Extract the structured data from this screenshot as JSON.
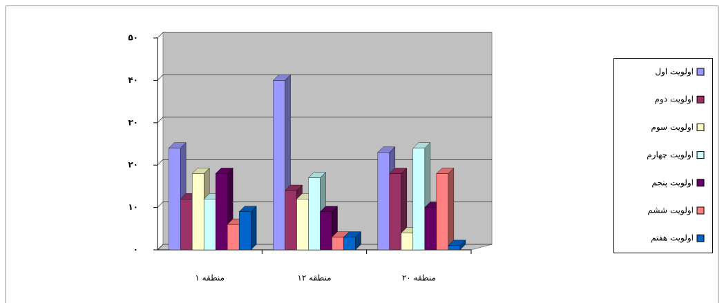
{
  "chart_data": {
    "type": "bar",
    "categories": [
      "منطقه ۱",
      "منطقه ۱۲",
      "منطقه ۲۰"
    ],
    "series": [
      {
        "name": "اولویت اول",
        "color": "#9999ff",
        "values": [
          24,
          40,
          23
        ]
      },
      {
        "name": "اولویت دوم",
        "color": "#993366",
        "values": [
          12,
          14,
          18
        ]
      },
      {
        "name": "اولویت سوم",
        "color": "#ffffcc",
        "values": [
          18,
          12,
          4
        ]
      },
      {
        "name": "اولویت چهارم",
        "color": "#ccffff",
        "values": [
          12,
          17,
          24
        ]
      },
      {
        "name": "اولویت پنجم",
        "color": "#660066",
        "values": [
          18,
          9,
          10
        ]
      },
      {
        "name": "اولویت ششم",
        "color": "#ff8080",
        "values": [
          6,
          3,
          18
        ]
      },
      {
        "name": "اولویت هفتم",
        "color": "#0066cc",
        "values": [
          9,
          3,
          1
        ]
      }
    ],
    "ylim": [
      0,
      50
    ],
    "yticks": [
      {
        "value": 0,
        "label": "۰"
      },
      {
        "value": 10,
        "label": "۱۰"
      },
      {
        "value": 20,
        "label": "۲۰"
      },
      {
        "value": 30,
        "label": "۳۰"
      },
      {
        "value": 40,
        "label": "۴۰"
      },
      {
        "value": 50,
        "label": "۵۰"
      }
    ],
    "grid": true,
    "legend": "right"
  }
}
